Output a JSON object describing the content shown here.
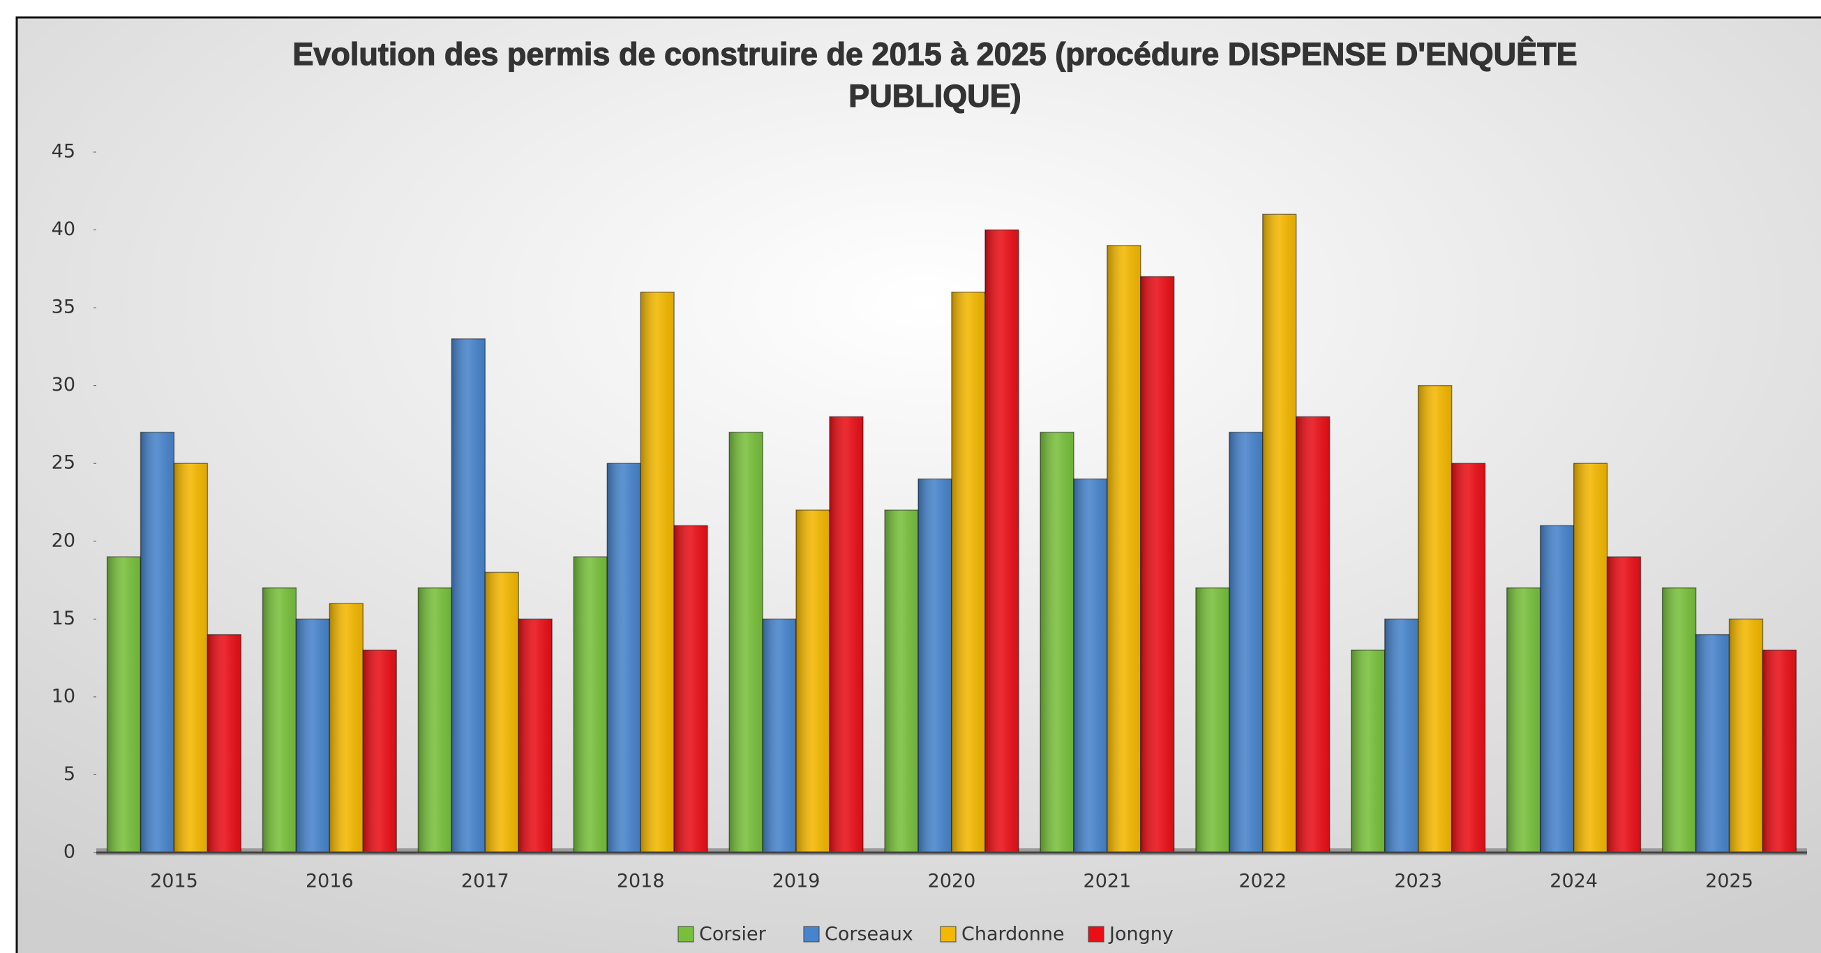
{
  "chart_data": {
    "type": "bar",
    "title": "Evolution des permis de construire de 2015 à 2025 (procédure DISPENSE D'ENQUÊTE PUBLIQUE)",
    "categories": [
      "2015",
      "2016",
      "2017",
      "2018",
      "2019",
      "2020",
      "2021",
      "2022",
      "2023",
      "2024",
      "2025"
    ],
    "series": [
      {
        "name": "Corsier",
        "color": "#78c03c",
        "values": [
          19,
          17,
          17,
          19,
          27,
          22,
          27,
          17,
          13,
          17,
          17
        ]
      },
      {
        "name": "Corseaux",
        "color": "#4784cc",
        "values": [
          27,
          15,
          33,
          25,
          15,
          24,
          24,
          27,
          15,
          21,
          14
        ]
      },
      {
        "name": "Chardonne",
        "color": "#f4b800",
        "values": [
          25,
          16,
          18,
          36,
          22,
          36,
          39,
          41,
          30,
          25,
          15
        ]
      },
      {
        "name": "Jongny",
        "color": "#ea0f17",
        "values": [
          14,
          13,
          15,
          21,
          28,
          40,
          37,
          28,
          25,
          19,
          13
        ]
      }
    ],
    "ylim": [
      0,
      45
    ],
    "yticks": [
      0,
      5,
      10,
      15,
      20,
      25,
      30,
      35,
      40,
      45
    ],
    "legend": "bottom"
  }
}
